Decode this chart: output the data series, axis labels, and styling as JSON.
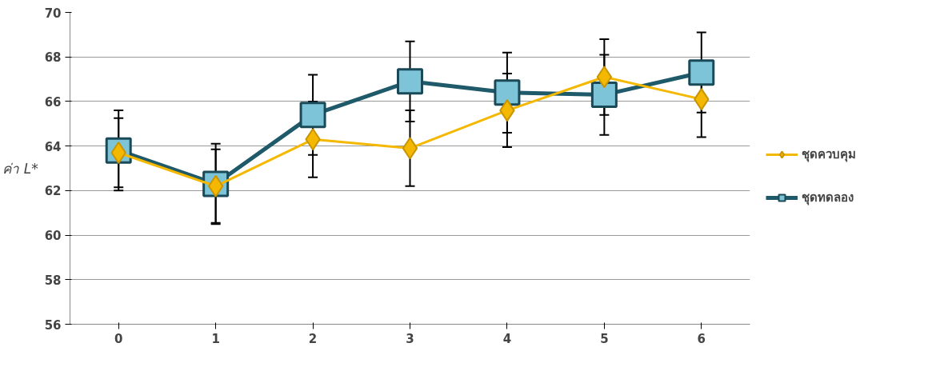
{
  "chart_data": {
    "type": "line",
    "ylabel": "ค่า L*",
    "categories": [
      "0",
      "1",
      "2",
      "3",
      "4",
      "5",
      "6"
    ],
    "ylim": [
      56,
      70
    ],
    "yticks": [
      56,
      58,
      60,
      62,
      64,
      66,
      68,
      70
    ],
    "grid": "y",
    "legend": "right",
    "series": [
      {
        "name": "ชุดควบคุม",
        "color": "#f5b800",
        "marker": "diamond",
        "values": [
          63.7,
          62.2,
          64.3,
          63.9,
          65.6,
          67.1,
          66.1
        ],
        "errors": [
          1.55,
          1.65,
          1.7,
          1.7,
          1.65,
          1.7,
          1.7
        ]
      },
      {
        "name": "ชุดทดลอง",
        "color": "#1f5a6a",
        "marker": "square",
        "values": [
          63.8,
          62.3,
          65.4,
          66.9,
          66.4,
          66.3,
          67.3
        ],
        "errors": [
          1.8,
          1.8,
          1.8,
          1.8,
          1.8,
          1.8,
          1.8
        ]
      }
    ]
  }
}
